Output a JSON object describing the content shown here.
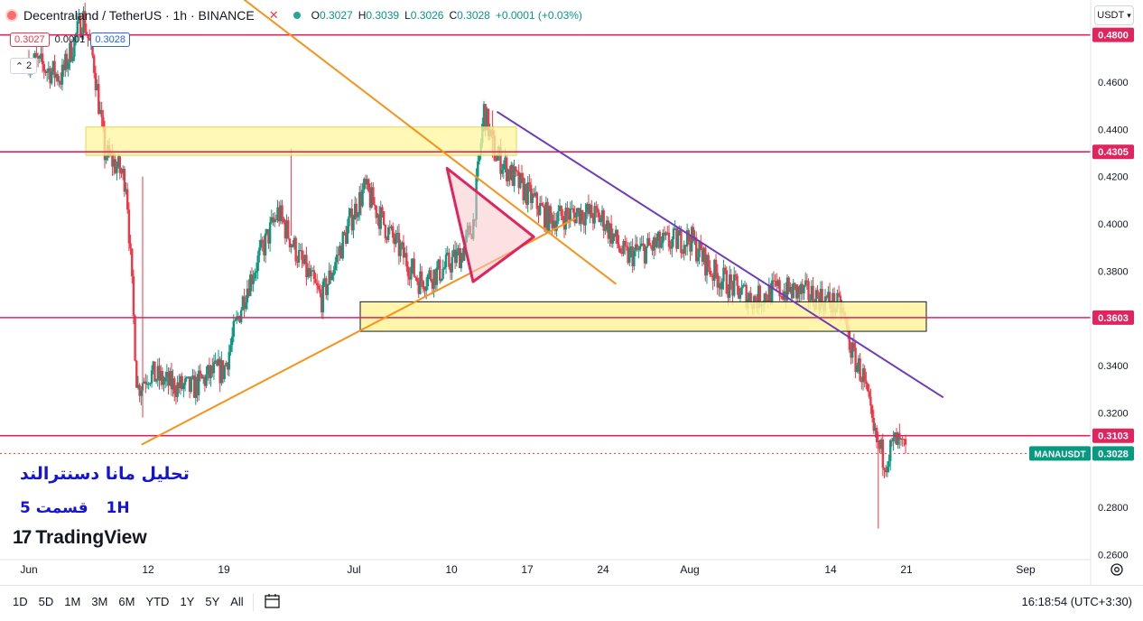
{
  "header": {
    "symbol": "Decentraland / TetherUS · 1h · BINANCE",
    "ohlc": {
      "o_label": "O",
      "o": "0.3027",
      "h_label": "H",
      "h": "0.3039",
      "l_label": "L",
      "l": "0.3026",
      "c_label": "C",
      "c": "0.3028",
      "change": "+0.0001 (+0.03%)"
    }
  },
  "quote": {
    "bid": "0.3027",
    "spread": "0.0001",
    "ask": "0.3028"
  },
  "indicator_toggle": "2",
  "currency": "USDT",
  "overlay_text": {
    "title": "تحلیل مانا دسنترالند",
    "timeframe": "1H",
    "part": "قسمت 5"
  },
  "branding": {
    "name": "TradingView"
  },
  "range_buttons": [
    "1D",
    "5D",
    "1M",
    "3M",
    "6M",
    "YTD",
    "1Y",
    "5Y",
    "All"
  ],
  "clock": "16:18:54 (UTC+3:30)",
  "colors": {
    "up": "#089981",
    "down": "#f23645",
    "level": "#e0245e",
    "zone": "#fff59d",
    "trend_orange": "#f7931a",
    "trend_purple": "#6e3cbc",
    "triangle": "#e0245e"
  },
  "chart_data": {
    "type": "candlestick",
    "symbol": "MANAUSDT",
    "y_axis": {
      "ticks": [
        "0.4600",
        "0.4400",
        "0.4200",
        "0.4000",
        "0.3800",
        "0.3400",
        "0.3200",
        "0.2800",
        "0.2600"
      ],
      "range": [
        0.258,
        0.49
      ]
    },
    "x_axis": {
      "ticks": [
        "Jun",
        "12",
        "19",
        "Jul",
        "10",
        "17",
        "24",
        "Aug",
        "14",
        "21",
        "Sep"
      ]
    },
    "levels": [
      {
        "label": "0.4800",
        "value": 0.48
      },
      {
        "label": "0.4305",
        "value": 0.4305
      },
      {
        "label": "0.3603",
        "value": 0.3603
      },
      {
        "label": "0.3103",
        "value": 0.3103
      }
    ],
    "last_price": {
      "name": "MANAUSDT",
      "value": "0.3028"
    },
    "price_path": [
      [
        "Jun 1",
        0.47
      ],
      [
        "Jun 4",
        0.462
      ],
      [
        "Jun 6",
        0.488
      ],
      [
        "Jun 7",
        0.468
      ],
      [
        "Jun 8",
        0.43
      ],
      [
        "Jun 9",
        0.425
      ],
      [
        "Jun 10",
        0.418
      ],
      [
        "Jun 11",
        0.33
      ],
      [
        "Jun 12",
        0.337
      ],
      [
        "Jun 14",
        0.332
      ],
      [
        "Jun 16",
        0.33
      ],
      [
        "Jun 18",
        0.337
      ],
      [
        "Jun 19",
        0.338
      ],
      [
        "Jun 21",
        0.372
      ],
      [
        "Jun 24",
        0.405
      ],
      [
        "Jun 26",
        0.385
      ],
      [
        "Jun 28",
        0.368
      ],
      [
        "Jul 1",
        0.405
      ],
      [
        "Jul 2",
        0.415
      ],
      [
        "Jul 4",
        0.398
      ],
      [
        "Jul 7",
        0.376
      ],
      [
        "Jul 9",
        0.38
      ],
      [
        "Jul 11",
        0.388
      ],
      [
        "Jul 12",
        0.4
      ],
      [
        "Jul 13",
        0.448
      ],
      [
        "Jul 14",
        0.43
      ],
      [
        "Jul 16",
        0.418
      ],
      [
        "Jul 19",
        0.402
      ],
      [
        "Jul 22",
        0.405
      ],
      [
        "Jul 24",
        0.402
      ],
      [
        "Jul 26",
        0.386
      ],
      [
        "Jul 29",
        0.391
      ],
      [
        "Aug 1",
        0.394
      ],
      [
        "Aug 3",
        0.38
      ],
      [
        "Aug 5",
        0.373
      ],
      [
        "Aug 7",
        0.368
      ],
      [
        "Aug 9",
        0.372
      ],
      [
        "Aug 11",
        0.371
      ],
      [
        "Aug 13",
        0.369
      ],
      [
        "Aug 15",
        0.364
      ],
      [
        "Aug 16",
        0.345
      ],
      [
        "Aug 17",
        0.335
      ],
      [
        "Aug 18",
        0.31
      ],
      [
        "Aug 19",
        0.3
      ],
      [
        "Aug 20",
        0.308
      ],
      [
        "Aug 21",
        0.3028
      ]
    ]
  }
}
